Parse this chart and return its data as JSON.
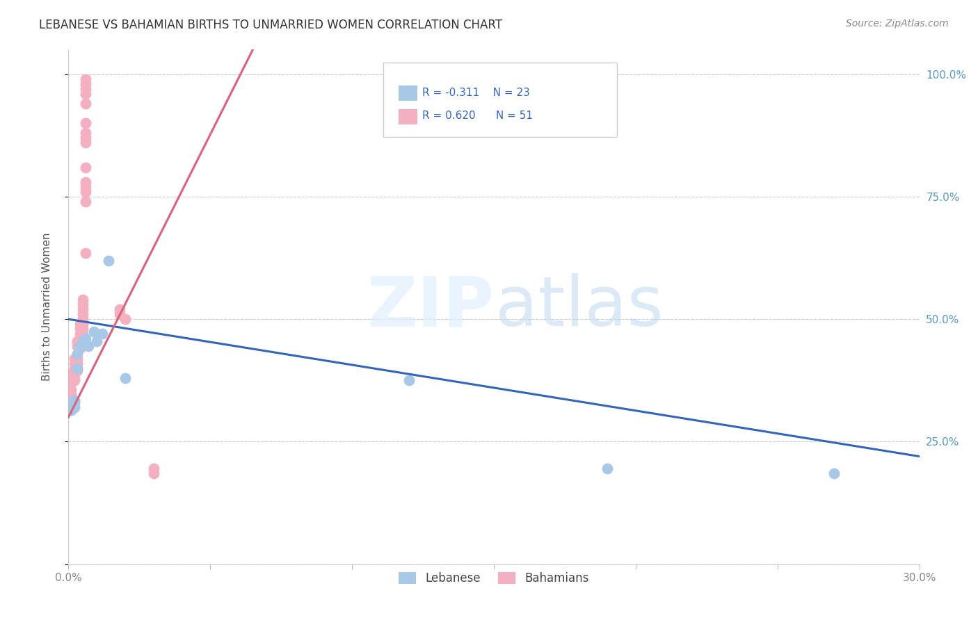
{
  "title": "LEBANESE VS BAHAMIAN BIRTHS TO UNMARRIED WOMEN CORRELATION CHART",
  "source": "Source: ZipAtlas.com",
  "ylabel": "Births to Unmarried Women",
  "x_min": 0.0,
  "x_max": 0.3,
  "y_min": 0.0,
  "y_max": 1.05,
  "legend_r_blue": "R = -0.311",
  "legend_n_blue": "N = 23",
  "legend_r_pink": "R = 0.620",
  "legend_n_pink": "N = 51",
  "blue_color": "#a8c8e8",
  "pink_color": "#f4b0c0",
  "blue_line_color": "#3366bb",
  "pink_line_color": "#e0607a",
  "label_lebanese": "Lebanese",
  "label_bahamians": "Bahamians",
  "lebanese_x": [
    0.001,
    0.001,
    0.001,
    0.001,
    0.001,
    0.002,
    0.002,
    0.002,
    0.002,
    0.003,
    0.003,
    0.004,
    0.005,
    0.006,
    0.007,
    0.009,
    0.01,
    0.012,
    0.014,
    0.02,
    0.12,
    0.19,
    0.27
  ],
  "lebanese_y": [
    0.33,
    0.325,
    0.32,
    0.315,
    0.315,
    0.335,
    0.33,
    0.33,
    0.32,
    0.43,
    0.4,
    0.445,
    0.455,
    0.46,
    0.445,
    0.475,
    0.455,
    0.47,
    0.62,
    0.38,
    0.375,
    0.195,
    0.185
  ],
  "bahamians_x": [
    0.001,
    0.001,
    0.001,
    0.001,
    0.002,
    0.002,
    0.002,
    0.002,
    0.002,
    0.002,
    0.003,
    0.003,
    0.003,
    0.003,
    0.003,
    0.003,
    0.004,
    0.004,
    0.004,
    0.004,
    0.004,
    0.004,
    0.005,
    0.005,
    0.005,
    0.005,
    0.005,
    0.005,
    0.005,
    0.005,
    0.005,
    0.006,
    0.006,
    0.006,
    0.006,
    0.006,
    0.006,
    0.006,
    0.006,
    0.006,
    0.006,
    0.006,
    0.006,
    0.006,
    0.006,
    0.006,
    0.018,
    0.018,
    0.02,
    0.03,
    0.03
  ],
  "bahamians_y": [
    0.39,
    0.37,
    0.355,
    0.345,
    0.42,
    0.41,
    0.4,
    0.39,
    0.38,
    0.375,
    0.42,
    0.41,
    0.4,
    0.395,
    0.455,
    0.445,
    0.49,
    0.48,
    0.47,
    0.46,
    0.45,
    0.44,
    0.54,
    0.53,
    0.52,
    0.51,
    0.5,
    0.49,
    0.48,
    0.47,
    0.46,
    0.635,
    0.74,
    0.76,
    0.77,
    0.78,
    0.81,
    0.86,
    0.87,
    0.88,
    0.9,
    0.94,
    0.96,
    0.97,
    0.98,
    0.99,
    0.52,
    0.51,
    0.5,
    0.195,
    0.185
  ]
}
